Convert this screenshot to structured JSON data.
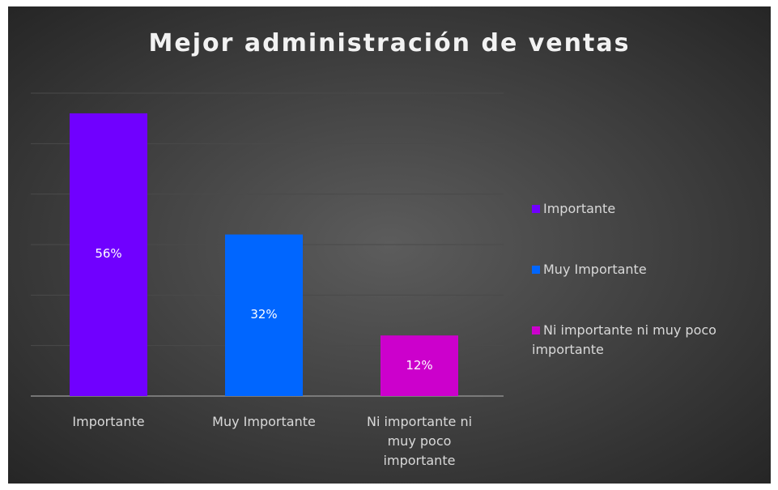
{
  "chart_data": {
    "type": "bar",
    "title": "Mejor administración de ventas",
    "categories": [
      "Importante",
      "Muy Importante",
      "Ni importante ni muy poco importante"
    ],
    "values": [
      56,
      32,
      12
    ],
    "value_labels": [
      "56%",
      "32%",
      "12%"
    ],
    "colors": [
      "#7000ff",
      "#0066ff",
      "#cc00cc"
    ],
    "legend": "right",
    "ylim": [
      0,
      60
    ],
    "yticks": [
      0,
      10,
      20,
      30,
      40,
      50,
      60
    ],
    "grid": true
  }
}
